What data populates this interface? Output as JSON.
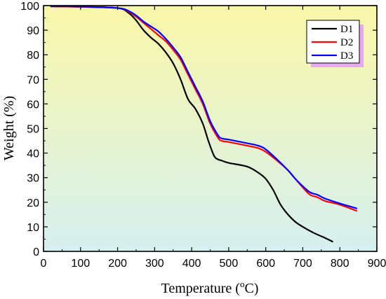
{
  "chart_data": {
    "type": "line",
    "title": "",
    "xlabel": "Temperature (",
    "xlabel_sup": "o",
    "xlabel_unit": "C)",
    "ylabel": "Weight (%)",
    "xlim": [
      0,
      900
    ],
    "ylim": [
      0,
      100
    ],
    "x_ticks": [
      "0",
      "100",
      "200",
      "300",
      "400",
      "500",
      "600",
      "700",
      "800",
      "900"
    ],
    "y_ticks": [
      "0",
      "10",
      "20",
      "30",
      "40",
      "50",
      "60",
      "70",
      "80",
      "90",
      "100"
    ],
    "grid": false,
    "legend_position": "top-right",
    "background_gradient": [
      "#faf7a8",
      "#d6f0f0"
    ],
    "series": [
      {
        "name": "D1",
        "color": "#000000",
        "x": [
          20,
          100,
          200,
          230,
          250,
          270,
          290,
          310,
          330,
          350,
          370,
          390,
          410,
          430,
          445,
          460,
          470,
          480,
          500,
          550,
          580,
          600,
          620,
          640,
          660,
          680,
          700,
          730,
          760,
          780
        ],
        "y": [
          99.7,
          99.5,
          99,
          97,
          94,
          90,
          87,
          84.5,
          81,
          76.5,
          70,
          62,
          58,
          52,
          45,
          39,
          37.5,
          37,
          36,
          34.5,
          32,
          29.5,
          25,
          19,
          15,
          12,
          10,
          7.5,
          5.5,
          4
        ]
      },
      {
        "name": "D2",
        "color": "#ff0000",
        "x": [
          20,
          100,
          200,
          230,
          250,
          270,
          290,
          310,
          330,
          350,
          370,
          390,
          410,
          430,
          450,
          470,
          480,
          500,
          550,
          580,
          600,
          630,
          660,
          680,
          700,
          720,
          740,
          760,
          800,
          845
        ],
        "y": [
          99.7,
          99.5,
          99,
          97.5,
          95.5,
          93,
          90.5,
          88,
          85.5,
          82,
          78,
          72,
          66,
          60,
          52,
          46.5,
          45,
          44.5,
          43,
          42,
          40.5,
          37,
          33,
          29.5,
          26,
          23,
          22,
          20.5,
          19,
          16.5
        ]
      },
      {
        "name": "D3",
        "color": "#0000ff",
        "x": [
          20,
          100,
          200,
          230,
          250,
          270,
          290,
          310,
          330,
          350,
          370,
          390,
          410,
          430,
          450,
          470,
          480,
          500,
          550,
          580,
          600,
          630,
          660,
          680,
          700,
          720,
          740,
          760,
          800,
          845
        ],
        "y": [
          99.7,
          99.6,
          99,
          97.8,
          96,
          93.5,
          91.5,
          89.5,
          86.5,
          83,
          79,
          73,
          67,
          61,
          53,
          47.5,
          46,
          45.5,
          44,
          43,
          41.5,
          37.5,
          33,
          29.5,
          26.5,
          24,
          23,
          21.5,
          19.5,
          17.5
        ]
      }
    ]
  }
}
